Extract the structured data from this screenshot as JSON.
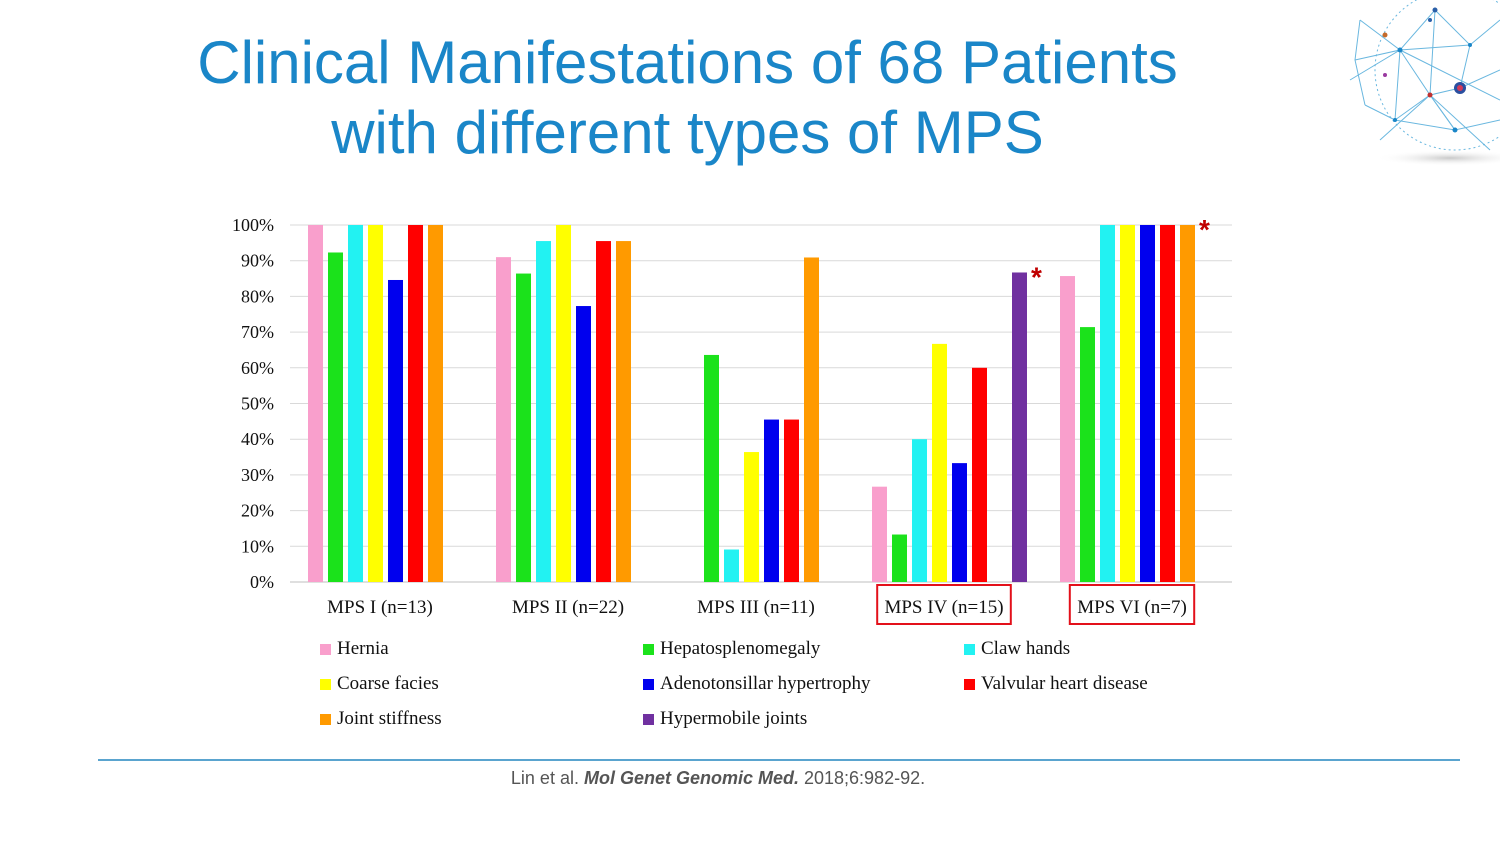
{
  "title": {
    "line1": "Clinical Manifestations of 68 Patients",
    "line2": "with different types of MPS"
  },
  "citation": {
    "authors": "Lin et al. ",
    "journal": "Mol Genet Genomic Med.",
    "details": " 2018;6:982-92."
  },
  "decoration": {
    "icon": "network-globe-icon",
    "color": "#1a86c8"
  },
  "chart_data": {
    "type": "bar",
    "categories": [
      "MPS I (n=13)",
      "MPS II (n=22)",
      "MPS III (n=11)",
      "MPS IV (n=15)",
      "MPS VI (n=7)"
    ],
    "highlighted_categories": [
      "MPS IV (n=15)",
      "MPS VI (n=7)"
    ],
    "highlight_color": "#e3101a",
    "y_ticks": [
      "0%",
      "10%",
      "20%",
      "30%",
      "40%",
      "50%",
      "60%",
      "70%",
      "80%",
      "90%",
      "100%"
    ],
    "ylim": [
      0,
      100
    ],
    "grid": true,
    "legend_position": "bottom",
    "series": [
      {
        "name": "Hernia",
        "color": "#f99fcc",
        "values": [
          100,
          91,
          0,
          26.7,
          85.7
        ]
      },
      {
        "name": "Hepatosplenomegaly",
        "color": "#1be21b",
        "values": [
          92.3,
          86.4,
          63.6,
          13.3,
          71.4
        ]
      },
      {
        "name": "Claw hands",
        "color": "#22f2f2",
        "values": [
          100,
          95.5,
          9.1,
          40,
          100
        ]
      },
      {
        "name": "Coarse facies",
        "color": "#ffff00",
        "values": [
          100,
          100,
          36.4,
          66.7,
          100
        ]
      },
      {
        "name": "Adenotonsillar hypertrophy",
        "color": "#0000ee",
        "values": [
          84.6,
          77.3,
          45.5,
          33.3,
          100
        ]
      },
      {
        "name": "Valvular heart disease",
        "color": "#ff0000",
        "values": [
          100,
          95.5,
          45.5,
          60,
          100
        ]
      },
      {
        "name": "Joint stiffness",
        "color": "#ff9a00",
        "values": [
          100,
          95.5,
          90.9,
          0,
          100
        ]
      },
      {
        "name": "Hypermobile joints",
        "color": "#7030a0",
        "values": [
          0,
          0,
          0,
          86.7,
          0
        ]
      }
    ],
    "annotations": [
      {
        "text": "*",
        "category": "MPS IV (n=15)",
        "series": "Hypermobile joints",
        "color": "#c00000"
      },
      {
        "text": "*",
        "category": "MPS VI (n=7)",
        "series": "Joint stiffness",
        "color": "#c00000"
      }
    ]
  }
}
